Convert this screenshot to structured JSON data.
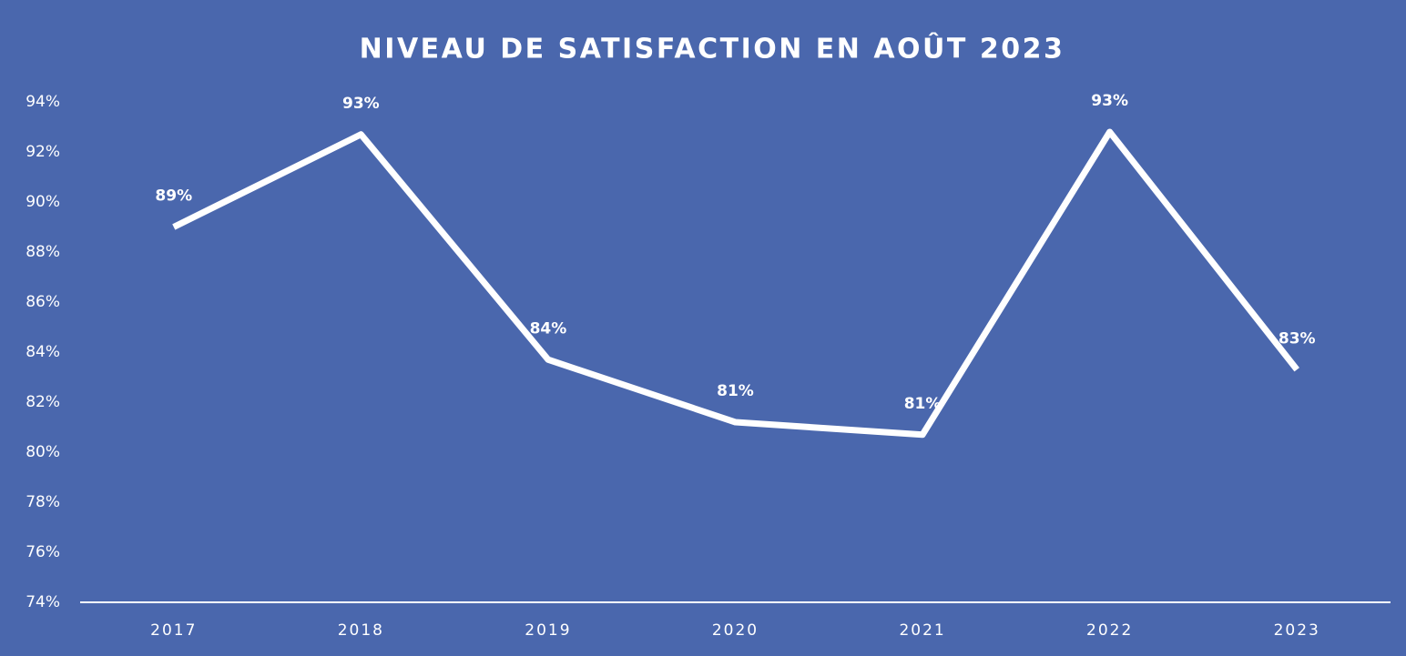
{
  "chart_data": {
    "type": "line",
    "title": "NIVEAU DE SATISFACTION EN AOÛT 2023",
    "categories": [
      "2017",
      "2018",
      "2019",
      "2020",
      "2021",
      "2022",
      "2023"
    ],
    "series": [
      {
        "name": "Satisfaction",
        "color": "#ffffff",
        "values": [
          89.0,
          92.7,
          83.7,
          81.2,
          80.7,
          92.8,
          83.3
        ],
        "value_labels": [
          "89%",
          "93%",
          "84%",
          "81%",
          "81%",
          "93%",
          "83%"
        ]
      }
    ],
    "ylim": [
      74,
      94
    ],
    "yticks": [
      {
        "value": 74,
        "label": "74%"
      },
      {
        "value": 76,
        "label": "76%"
      },
      {
        "value": 78,
        "label": "78%"
      },
      {
        "value": 80,
        "label": "80%"
      },
      {
        "value": 82,
        "label": "82%"
      },
      {
        "value": 84,
        "label": "84%"
      },
      {
        "value": 86,
        "label": "86%"
      },
      {
        "value": 88,
        "label": "88%"
      },
      {
        "value": 90,
        "label": "90%"
      },
      {
        "value": 92,
        "label": "92%"
      },
      {
        "value": 94,
        "label": "94%"
      }
    ],
    "grid": false,
    "drop_lines": true
  }
}
